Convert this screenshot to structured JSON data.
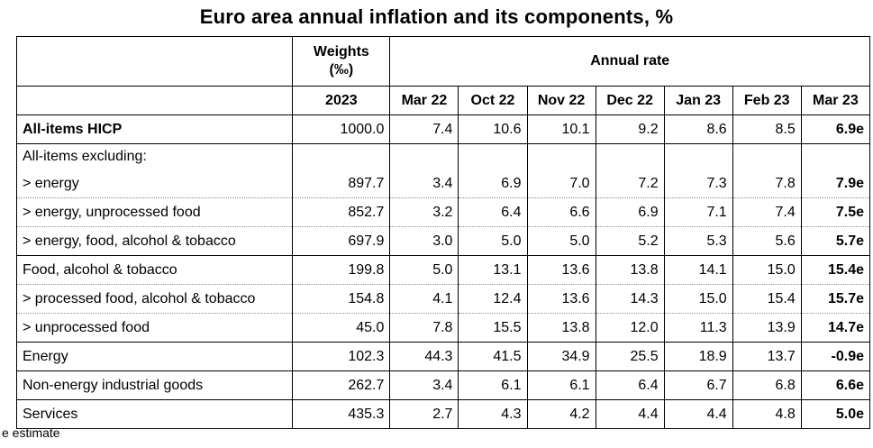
{
  "title": "Euro area annual inflation and its components, %",
  "header": {
    "weights_label_line1": "Weights",
    "weights_label_line2": "(‰)",
    "annual_rate_label": "Annual rate",
    "weights_year": "2023",
    "months": [
      "Mar 22",
      "Oct 22",
      "Nov 22",
      "Dec 22",
      "Jan 23",
      "Feb 23",
      "Mar 23"
    ]
  },
  "rows": [
    {
      "label": "All-items HICP",
      "weight": "1000.0",
      "values": [
        "7.4",
        "10.6",
        "10.1",
        "9.2",
        "8.6",
        "8.5",
        "6.9e"
      ]
    },
    {
      "label": "All-items excluding:",
      "weight": "",
      "values": [
        "",
        "",
        "",
        "",
        "",
        "",
        ""
      ]
    },
    {
      "label": "> energy",
      "weight": "897.7",
      "values": [
        "3.4",
        "6.9",
        "7.0",
        "7.2",
        "7.3",
        "7.8",
        "7.9e"
      ]
    },
    {
      "label": "> energy, unprocessed food",
      "weight": "852.7",
      "values": [
        "3.2",
        "6.4",
        "6.6",
        "6.9",
        "7.1",
        "7.4",
        "7.5e"
      ]
    },
    {
      "label": "> energy, food, alcohol & tobacco",
      "weight": "697.9",
      "values": [
        "3.0",
        "5.0",
        "5.0",
        "5.2",
        "5.3",
        "5.6",
        "5.7e"
      ]
    },
    {
      "label": "Food, alcohol & tobacco",
      "weight": "199.8",
      "values": [
        "5.0",
        "13.1",
        "13.6",
        "13.8",
        "14.1",
        "15.0",
        "15.4e"
      ]
    },
    {
      "label": "> processed food, alcohol & tobacco",
      "weight": "154.8",
      "values": [
        "4.1",
        "12.4",
        "13.6",
        "14.3",
        "15.0",
        "15.4",
        "15.7e"
      ]
    },
    {
      "label": "> unprocessed food",
      "weight": "45.0",
      "values": [
        "7.8",
        "15.5",
        "13.8",
        "12.0",
        "11.3",
        "13.9",
        "14.7e"
      ]
    },
    {
      "label": "Energy",
      "weight": "102.3",
      "values": [
        "44.3",
        "41.5",
        "34.9",
        "25.5",
        "18.9",
        "13.7",
        "-0.9e"
      ]
    },
    {
      "label": "Non-energy industrial goods",
      "weight": "262.7",
      "values": [
        "3.4",
        "6.1",
        "6.1",
        "6.4",
        "6.7",
        "6.8",
        "6.6e"
      ]
    },
    {
      "label": "Services",
      "weight": "435.3",
      "values": [
        "2.7",
        "4.3",
        "4.2",
        "4.4",
        "4.4",
        "4.8",
        "5.0e"
      ]
    }
  ],
  "footnote": "e estimate"
}
